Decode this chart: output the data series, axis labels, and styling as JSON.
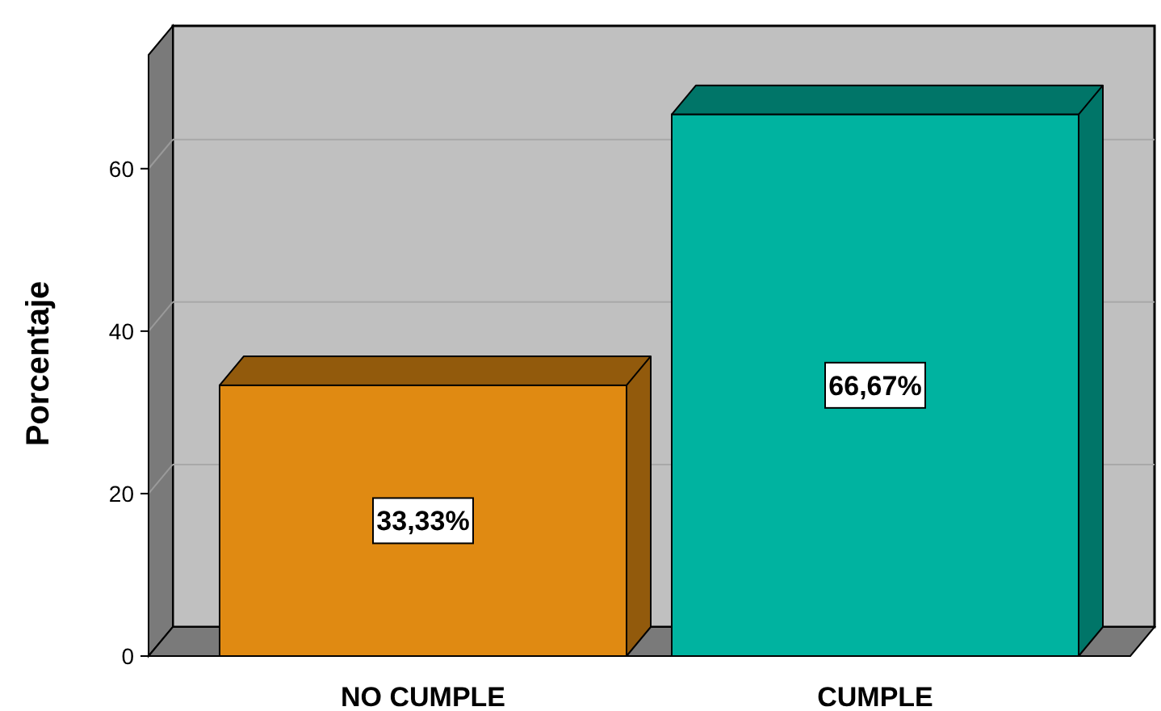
{
  "chart_data": {
    "type": "bar",
    "ylabel": "Porcentaje",
    "categories": [
      "NO CUMPLE",
      "CUMPLE"
    ],
    "values": [
      33.33,
      66.67
    ],
    "colors": [
      "#e08a12",
      "#00b3a0"
    ],
    "value_labels": [
      "33,33%",
      "66,67%"
    ],
    "ylim": [
      0,
      74
    ],
    "yticks": [
      0,
      20,
      40,
      60
    ],
    "grid": "y"
  }
}
